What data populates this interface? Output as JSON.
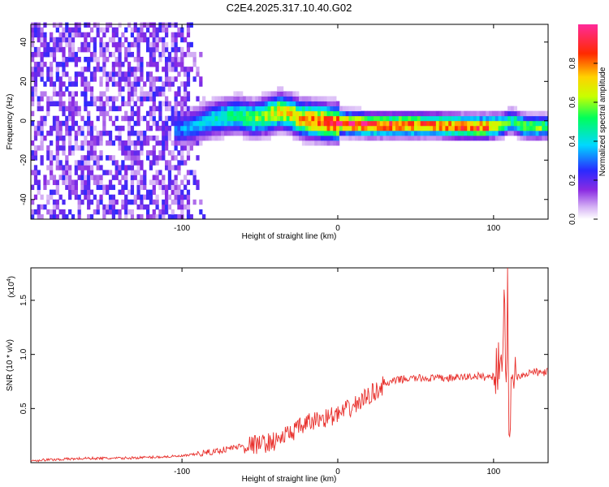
{
  "figure": {
    "title": "C2E4.2025.317.10.40.G02"
  },
  "chart_data": [
    {
      "type": "heatmap",
      "title": "C2E4.2025.317.10.40.G02",
      "xlabel": "Height of straight line (km)",
      "ylabel": "Frequency (Hz)",
      "xlim": [
        -197,
        135
      ],
      "ylim": [
        -50,
        49
      ],
      "xticks": [
        -100,
        0,
        100
      ],
      "yticks": [
        -40,
        -20,
        0,
        20,
        40
      ],
      "xtick_labels": [
        "-100",
        "0",
        "100"
      ],
      "ytick_labels": [
        "-40",
        "-20",
        "0",
        "20",
        "40"
      ],
      "grid": false,
      "colorbar": {
        "label": "Normalized spectral amplitude",
        "range": [
          0,
          1
        ],
        "ticks": [
          0.0,
          0.2,
          0.4,
          0.6,
          0.8
        ],
        "tick_labels": [
          "0.0",
          "0.2",
          "0.4",
          "0.6",
          "0.8"
        ],
        "colormap": "rainbow (white-violet-blue-cyan-green-yellow-red-magenta)"
      },
      "ridge": {
        "description": "Dominant spectral line frequency vs height",
        "x": [
          -105,
          -95,
          -85,
          -75,
          -65,
          -55,
          -45,
          -38,
          -32,
          -25,
          -15,
          -5,
          0,
          20,
          40,
          60,
          80,
          95,
          105,
          110,
          120,
          135
        ],
        "frequency": [
          -4,
          -3,
          0,
          2,
          3,
          1,
          3,
          5,
          4,
          1,
          0,
          -1,
          -1,
          -2,
          -2,
          -2,
          -3,
          -3,
          -2,
          0,
          -3,
          -3
        ],
        "amplitude": [
          0.3,
          0.35,
          0.4,
          0.45,
          0.5,
          0.55,
          0.65,
          0.7,
          0.7,
          0.75,
          0.85,
          0.9,
          0.95,
          0.9,
          0.85,
          0.8,
          0.85,
          0.85,
          0.6,
          0.5,
          0.6,
          0.55
        ]
      },
      "noise_region": {
        "x_range": [
          -197,
          -95
        ],
        "amplitude": [
          0.05,
          0.25
        ]
      }
    },
    {
      "type": "line",
      "xlabel": "Height of straight line (km)",
      "ylabel": "SNR (10 * v/v)",
      "y_multiplier": "(x10",
      "y_multiplier_exp": "4",
      "y_multiplier_close": ")",
      "xlim": [
        -197,
        135
      ],
      "ylim": [
        0.0,
        1.8
      ],
      "xticks": [
        -100,
        0,
        100
      ],
      "yticks": [
        0.5,
        1.0,
        1.5
      ],
      "xtick_labels": [
        "-100",
        "0",
        "100"
      ],
      "ytick_labels": [
        "0.5",
        "1.0",
        "1.5"
      ],
      "grid": false,
      "series": [
        {
          "name": "SNR",
          "color": "#e8302c",
          "x": [
            -197,
            -180,
            -160,
            -140,
            -120,
            -100,
            -90,
            -80,
            -70,
            -60,
            -50,
            -40,
            -30,
            -20,
            -10,
            0,
            10,
            20,
            30,
            40,
            50,
            60,
            70,
            80,
            90,
            95,
            100,
            103,
            106,
            107,
            108,
            109,
            110,
            112,
            115,
            120,
            125,
            130,
            135
          ],
          "y": [
            0.02,
            0.03,
            0.04,
            0.04,
            0.05,
            0.06,
            0.08,
            0.1,
            0.13,
            0.16,
            0.17,
            0.2,
            0.28,
            0.36,
            0.41,
            0.44,
            0.52,
            0.62,
            0.72,
            0.77,
            0.78,
            0.78,
            0.78,
            0.79,
            0.8,
            0.79,
            0.8,
            0.9,
            1.1,
            1.45,
            0.4,
            1.7,
            0.3,
            0.85,
            0.8,
            0.82,
            0.84,
            0.83,
            0.84
          ]
        }
      ]
    }
  ]
}
